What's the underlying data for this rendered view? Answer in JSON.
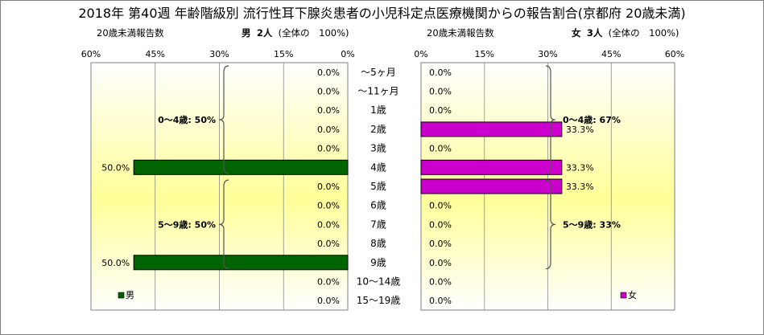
{
  "title": "2018年 第40週 年齢階級別 流行性耳下腺炎患者の小児科定点医療機関からの報告割合(京都府 20歳未満)",
  "left_header": {
    "subtitle": "20歳未満報告数",
    "sex": "男",
    "count": "2人",
    "total_text": "(全体の　100%)"
  },
  "right_header": {
    "subtitle": "20歳未満報告数",
    "sex": "女",
    "count": "3人",
    "total_text": "(全体の　100%)"
  },
  "colors": {
    "male": "#006400",
    "female": "#cc00cc",
    "plot_top": "#ffffff",
    "plot_bottom": "#ffff99",
    "grid": "#888888"
  },
  "chart_data": [
    {
      "type": "bar",
      "orientation": "horizontal",
      "direction": "right-to-left",
      "legend": "男",
      "legend_position": "bottom-left",
      "xlim": [
        0,
        60
      ],
      "xticks": [
        "60%",
        "45%",
        "30%",
        "15%",
        "0%"
      ],
      "grid": true,
      "categories": [
        "～5ヶ月",
        "～11ヶ月",
        "1歳",
        "2歳",
        "3歳",
        "4歳",
        "5歳",
        "6歳",
        "7歳",
        "8歳",
        "9歳",
        "10～14歳",
        "15～19歳"
      ],
      "values": [
        0,
        0,
        0,
        0,
        0,
        50,
        0,
        0,
        0,
        0,
        50,
        0,
        0
      ],
      "labels": [
        "0.0%",
        "0.0%",
        "0.0%",
        "0.0%",
        "0.0%",
        "50.0%",
        "0.0%",
        "0.0%",
        "0.0%",
        "0.0%",
        "50.0%",
        "0.0%",
        "0.0%"
      ],
      "annotations": [
        {
          "text": "0～4歳: 50%",
          "from": 0,
          "to": 5
        },
        {
          "text": "5～9歳: 50%",
          "from": 6,
          "to": 10
        }
      ]
    },
    {
      "type": "bar",
      "orientation": "horizontal",
      "direction": "left-to-right",
      "legend": "女",
      "legend_position": "bottom-right",
      "xlim": [
        0,
        60
      ],
      "xticks": [
        "0%",
        "15%",
        "30%",
        "45%",
        "60%"
      ],
      "grid": true,
      "categories": [
        "～5ヶ月",
        "～11ヶ月",
        "1歳",
        "2歳",
        "3歳",
        "4歳",
        "5歳",
        "6歳",
        "7歳",
        "8歳",
        "9歳",
        "10～14歳",
        "15～19歳"
      ],
      "values": [
        0,
        0,
        0,
        33.3,
        0,
        33.3,
        33.3,
        0,
        0,
        0,
        0,
        0,
        0
      ],
      "labels": [
        "0.0%",
        "0.0%",
        "0.0%",
        "33.3%",
        "0.0%",
        "33.3%",
        "33.3%",
        "0.0%",
        "0.0%",
        "0.0%",
        "0.0%",
        "0.0%",
        "0.0%"
      ],
      "annotations": [
        {
          "text": "0～4歳: 67%",
          "from": 0,
          "to": 5
        },
        {
          "text": "5～9歳: 33%",
          "from": 6,
          "to": 10
        }
      ]
    }
  ]
}
